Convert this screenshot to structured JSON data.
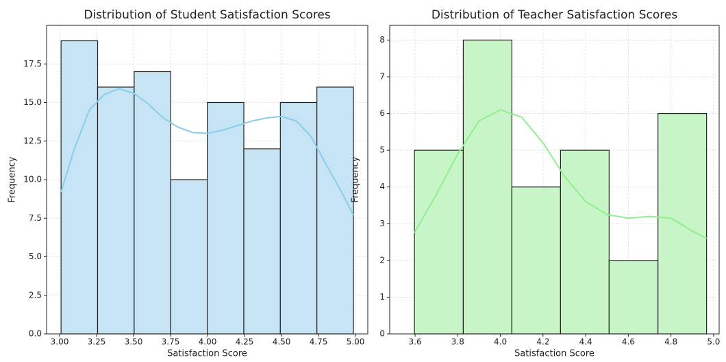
{
  "chart_data": [
    {
      "type": "histogram",
      "title": "Distribution of Student Satisfaction Scores",
      "xlabel": "Satisfaction Score",
      "ylabel": "Frequency",
      "bins": [
        3.01,
        3.257,
        3.504,
        3.751,
        3.998,
        4.245,
        4.492,
        4.739,
        4.986
      ],
      "values": [
        19,
        16,
        17,
        10,
        15,
        12,
        15,
        16
      ],
      "color": "#c6e4f3",
      "line_color": "#87ceeb",
      "kde_x": [
        3.01,
        3.1,
        3.2,
        3.3,
        3.4,
        3.5,
        3.6,
        3.7,
        3.8,
        3.9,
        4.0,
        4.1,
        4.2,
        4.3,
        4.4,
        4.5,
        4.6,
        4.7,
        4.8,
        4.9,
        4.986
      ],
      "kde_y": [
        9.2,
        12.0,
        14.5,
        15.5,
        15.9,
        15.6,
        14.9,
        14.0,
        13.4,
        13.05,
        13.0,
        13.2,
        13.5,
        13.8,
        14.0,
        14.1,
        13.8,
        12.8,
        11.0,
        9.3,
        7.7
      ],
      "xlim": [
        2.912,
        5.083
      ],
      "ylim": [
        0,
        20
      ],
      "xticks": [
        {
          "value": 3.0,
          "label": "3.00"
        },
        {
          "value": 3.25,
          "label": "3.25"
        },
        {
          "value": 3.5,
          "label": "3.50"
        },
        {
          "value": 3.75,
          "label": "3.75"
        },
        {
          "value": 4.0,
          "label": "4.00"
        },
        {
          "value": 4.25,
          "label": "4.25"
        },
        {
          "value": 4.5,
          "label": "4.50"
        },
        {
          "value": 4.75,
          "label": "4.75"
        },
        {
          "value": 5.0,
          "label": "5.00"
        }
      ],
      "yticks": [
        {
          "value": 0,
          "label": "0.0"
        },
        2.5,
        {
          "value": 5,
          "label": "5.0"
        },
        7.5,
        {
          "value": 10,
          "label": "10.0"
        },
        12.5,
        {
          "value": 15,
          "label": "15.0"
        },
        17.5
      ],
      "grid": true
    },
    {
      "type": "histogram",
      "title": "Distribution of Teacher Satisfaction Scores",
      "xlabel": "Satisfaction Score",
      "ylabel": "Frequency",
      "bins": [
        3.597,
        3.826,
        4.054,
        4.282,
        4.51,
        4.739,
        4.967
      ],
      "values": [
        5,
        8,
        4,
        5,
        2,
        6
      ],
      "color": "#c8f5c8",
      "line_color": "#90ee90",
      "kde_x": [
        3.597,
        3.7,
        3.8,
        3.9,
        4.0,
        4.1,
        4.2,
        4.3,
        4.4,
        4.5,
        4.6,
        4.7,
        4.8,
        4.9,
        4.967
      ],
      "kde_y": [
        2.75,
        3.8,
        4.9,
        5.8,
        6.1,
        5.9,
        5.2,
        4.3,
        3.6,
        3.25,
        3.15,
        3.2,
        3.15,
        2.8,
        2.6
      ],
      "xlim": [
        3.481,
        5.026
      ],
      "ylim": [
        0,
        8.4
      ],
      "xticks": [
        3.6,
        3.8,
        {
          "value": 4.0,
          "label": "4.0"
        },
        4.2,
        4.4,
        4.6,
        4.8,
        {
          "value": 5.0,
          "label": "5.0"
        }
      ],
      "yticks": [
        0,
        1,
        2,
        3,
        4,
        5,
        6,
        7,
        8
      ],
      "grid": true
    }
  ]
}
